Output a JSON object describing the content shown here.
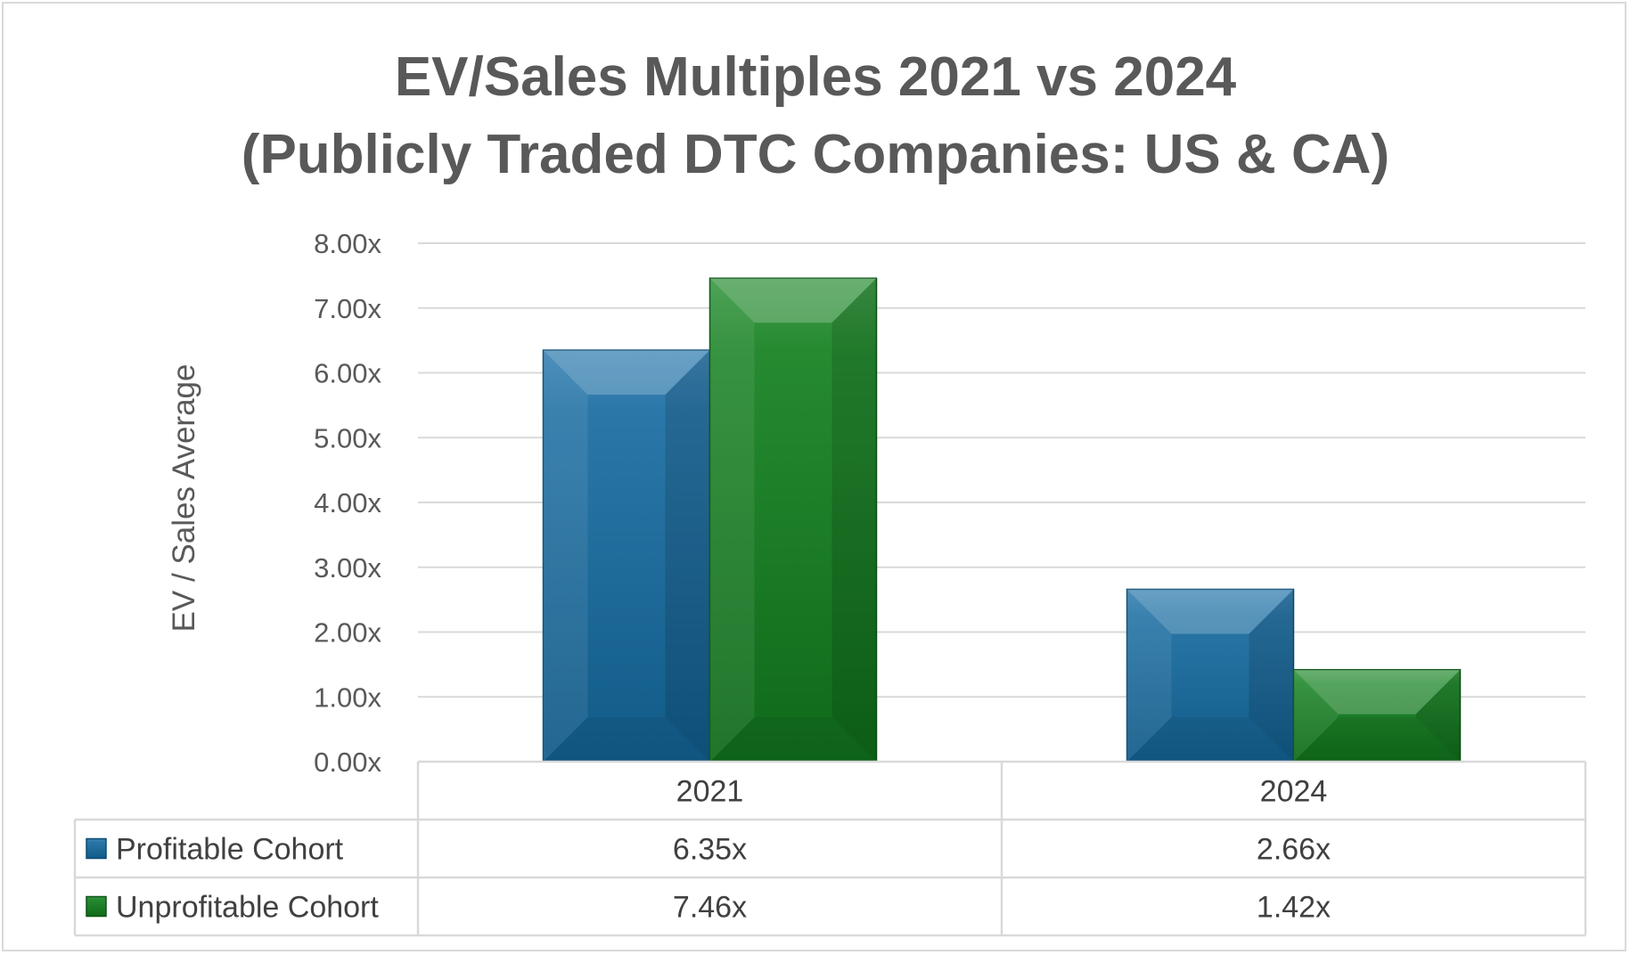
{
  "chart_data": {
    "type": "bar",
    "title": [
      "EV/Sales Multiples 2021 vs 2024",
      "(Publicly Traded DTC Companies: US & CA)"
    ],
    "ylabel": "EV / Sales Average",
    "xlabel": "",
    "ylim": [
      0,
      8
    ],
    "yticks": [
      "0.00x",
      "1.00x",
      "2.00x",
      "3.00x",
      "4.00x",
      "5.00x",
      "6.00x",
      "7.00x",
      "8.00x"
    ],
    "categories": [
      "2021",
      "2024"
    ],
    "series": [
      {
        "name": "Profitable Cohort",
        "values": [
          6.35,
          2.66
        ],
        "labels": [
          "6.35x",
          "2.66x"
        ],
        "color": "#1d6a99"
      },
      {
        "name": "Unprofitable Cohort",
        "values": [
          7.46,
          1.42
        ],
        "labels": [
          "7.46x",
          "1.42x"
        ],
        "color": "#1b7a26"
      }
    ],
    "grid": true,
    "legend": "data-table"
  }
}
